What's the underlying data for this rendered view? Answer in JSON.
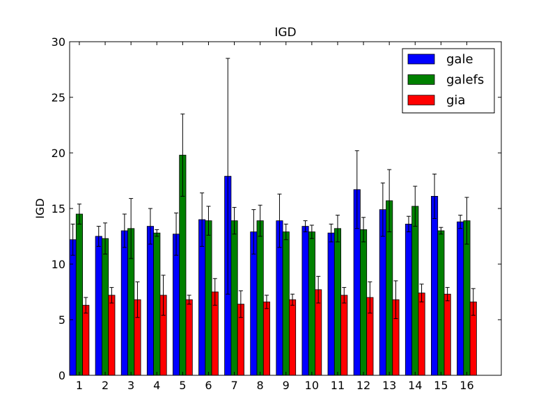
{
  "chart_data": {
    "type": "bar",
    "title": "IGD",
    "xlabel": "",
    "ylabel": "IGD",
    "ylim": [
      0,
      30
    ],
    "yticks": [
      0,
      5,
      10,
      15,
      20,
      25,
      30
    ],
    "categories": [
      "1",
      "2",
      "3",
      "4",
      "5",
      "6",
      "7",
      "8",
      "9",
      "10",
      "11",
      "12",
      "13",
      "14",
      "15",
      "16"
    ],
    "legend_position": "top-right",
    "grid": false,
    "series": [
      {
        "name": "gale",
        "color": "#0000ff",
        "values": [
          12.2,
          12.5,
          13.0,
          13.4,
          12.7,
          14.0,
          17.9,
          12.9,
          13.9,
          13.4,
          12.8,
          16.7,
          14.9,
          13.6,
          16.1,
          13.8
        ],
        "errors": [
          1.4,
          0.9,
          1.5,
          1.6,
          1.9,
          2.4,
          10.6,
          2.0,
          2.4,
          0.5,
          0.8,
          3.5,
          2.4,
          0.7,
          2.0,
          0.6
        ]
      },
      {
        "name": "galefs",
        "color": "#008000",
        "values": [
          14.5,
          12.3,
          13.2,
          12.8,
          19.8,
          13.9,
          13.9,
          13.9,
          12.9,
          12.9,
          13.2,
          13.1,
          15.7,
          15.2,
          13.0,
          13.9
        ],
        "errors": [
          0.9,
          1.4,
          2.7,
          0.3,
          3.7,
          1.3,
          1.2,
          1.4,
          0.7,
          0.6,
          1.2,
          1.1,
          2.8,
          1.8,
          0.3,
          2.1
        ]
      },
      {
        "name": "gia",
        "color": "#ff0000",
        "values": [
          6.3,
          7.2,
          6.8,
          7.2,
          6.8,
          7.5,
          6.4,
          6.6,
          6.8,
          7.7,
          7.2,
          7.0,
          6.8,
          7.4,
          7.3,
          6.6
        ],
        "errors": [
          0.7,
          0.7,
          1.6,
          1.8,
          0.4,
          1.2,
          1.2,
          0.6,
          0.5,
          1.2,
          0.7,
          1.4,
          1.7,
          0.8,
          0.6,
          1.2
        ]
      }
    ]
  }
}
